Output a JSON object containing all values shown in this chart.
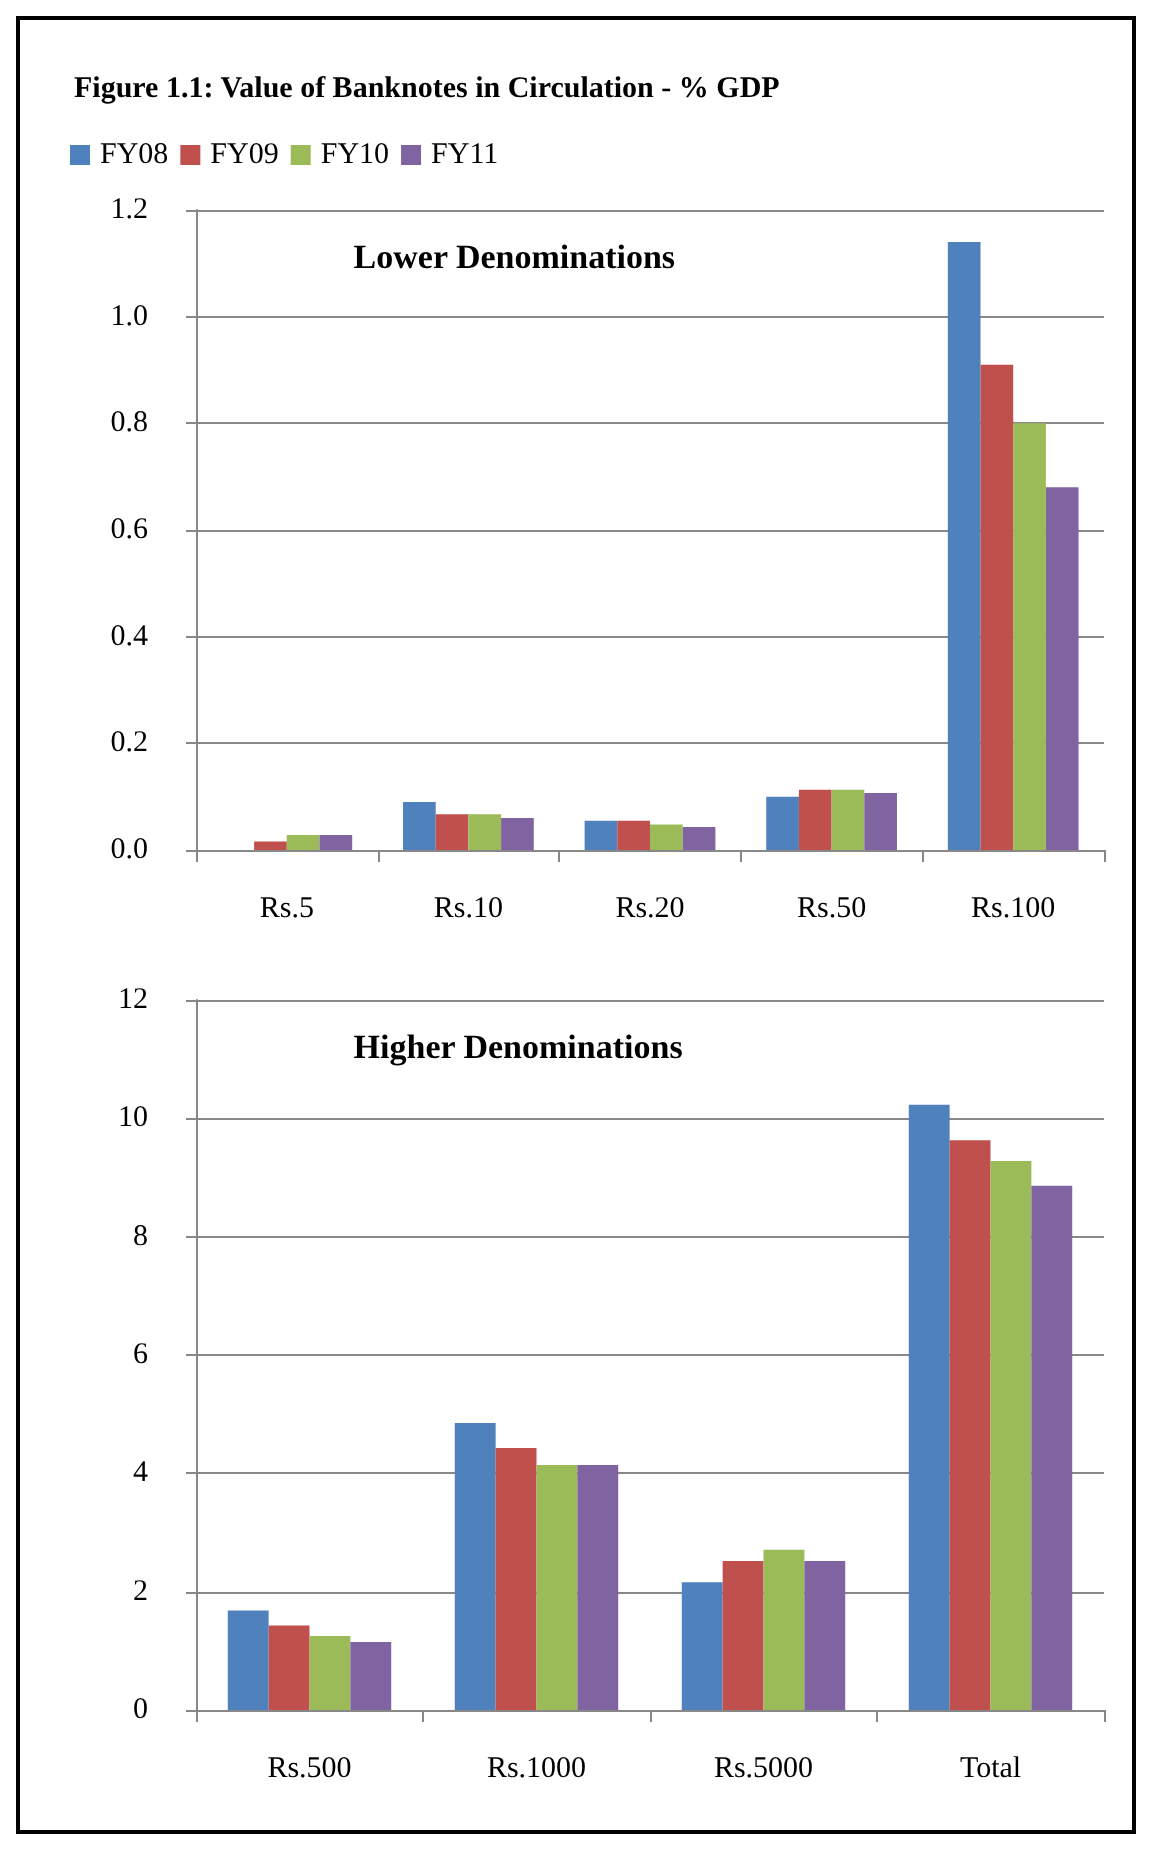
{
  "chart_data": [
    {
      "type": "bar",
      "title": "Figure 1.1: Value of Banknotes in Circulation - % GDP",
      "annotations": [
        "Lower Denominations"
      ],
      "categories": [
        "Rs.5",
        "Rs.10",
        "Rs.20",
        "Rs.50",
        "Rs.100"
      ],
      "series": [
        {
          "name": "FY08",
          "color": "#4f81bd",
          "values": [
            0,
            0.09,
            0.055,
            0.1,
            1.14
          ]
        },
        {
          "name": "FY09",
          "color": "#c0504d",
          "values": [
            0.016,
            0.067,
            0.055,
            0.113,
            0.91
          ]
        },
        {
          "name": "FY10",
          "color": "#9bbb59",
          "values": [
            0.028,
            0.067,
            0.048,
            0.113,
            0.8
          ]
        },
        {
          "name": "FY11",
          "color": "#8064a2",
          "values": [
            0.028,
            0.06,
            0.043,
            0.107,
            0.68
          ]
        }
      ],
      "ylim": [
        0,
        1.2
      ],
      "yticks": [
        {
          "value": 0,
          "label": "0.0"
        },
        {
          "value": 0.2,
          "label": "0.2"
        },
        {
          "value": 0.4,
          "label": "0.4"
        },
        {
          "value": 0.6,
          "label": "0.6"
        },
        {
          "value": 0.8,
          "label": "0.8"
        },
        {
          "value": 1,
          "label": "1.0"
        },
        {
          "value": 1.2,
          "label": "1.2"
        }
      ],
      "grid": "y",
      "legend": "top left"
    },
    {
      "type": "bar",
      "annotations": [
        "Higher Denominations"
      ],
      "categories": [
        "Rs.500",
        "Rs.1000",
        "Rs.5000",
        "Total"
      ],
      "series": [
        {
          "color": "#4f81bd",
          "values": [
            1.68,
            4.85,
            2.16,
            10.23
          ]
        },
        {
          "color": "#c0504d",
          "values": [
            1.43,
            4.43,
            2.52,
            9.63
          ]
        },
        {
          "color": "#9bbb59",
          "values": [
            1.25,
            4.14,
            2.71,
            9.28
          ]
        },
        {
          "color": "#8064a2",
          "values": [
            1.15,
            4.14,
            2.52,
            8.86
          ]
        }
      ],
      "ylim": [
        0,
        12
      ],
      "yticks": [
        0,
        2,
        4,
        6,
        8,
        10,
        12
      ],
      "grid": "y"
    }
  ]
}
